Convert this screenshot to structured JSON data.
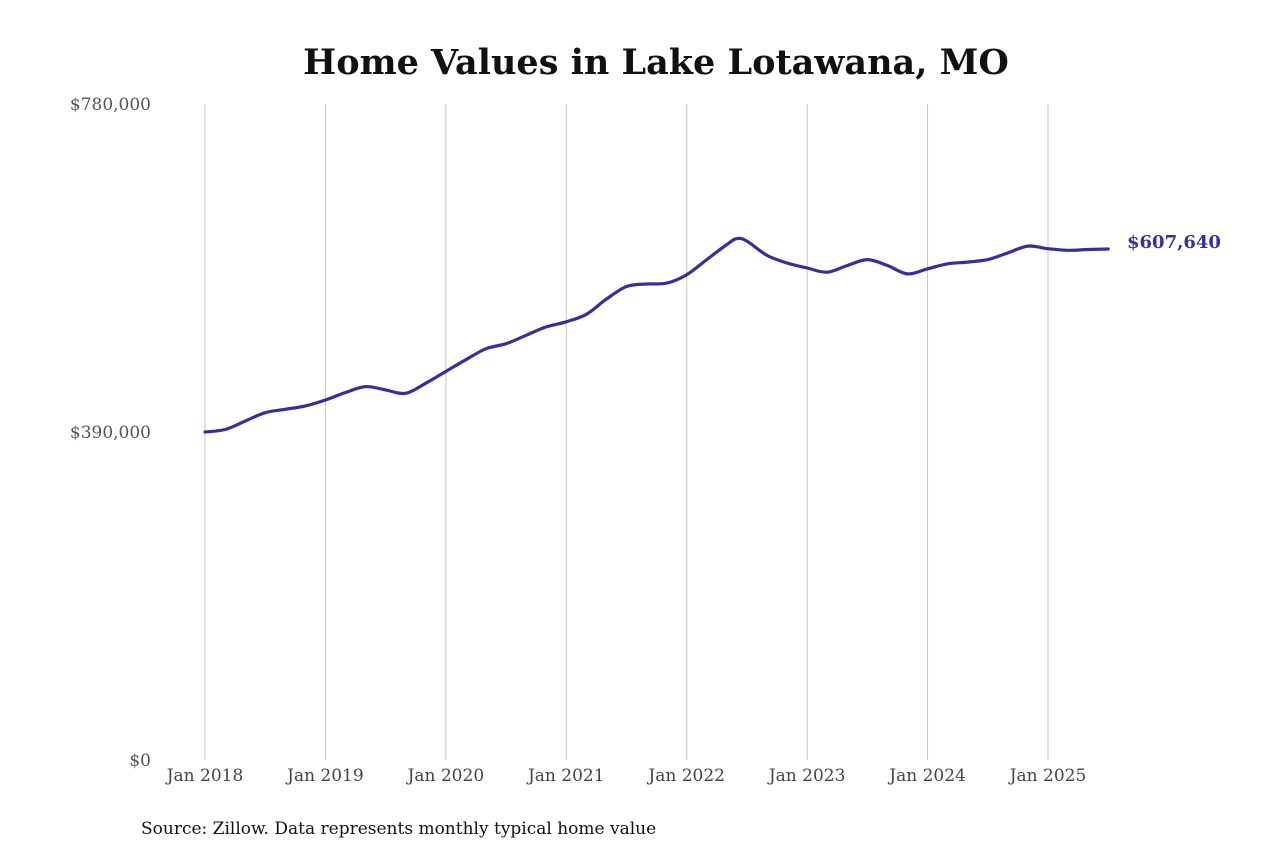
{
  "chart_data": {
    "type": "line",
    "title": "Home Values in Lake Lotawana, MO",
    "xlabel": "",
    "ylabel": "",
    "source": "Source: Zillow. Data represents monthly typical home value",
    "ylim": [
      0,
      780000
    ],
    "yticks": [
      0,
      390000,
      780000
    ],
    "ytick_labels": [
      "$0",
      "$390,000",
      "$780,000"
    ],
    "xticks": [
      "2018-01",
      "2019-01",
      "2020-01",
      "2021-01",
      "2022-01",
      "2023-01",
      "2024-01",
      "2025-01"
    ],
    "xtick_labels": [
      "Jan 2018",
      "Jan 2019",
      "Jan 2020",
      "Jan 2021",
      "Jan 2022",
      "Jan 2023",
      "Jan 2024",
      "Jan 2025"
    ],
    "grid": "vertical",
    "line_color": "#36309a",
    "end_label": "$607,640",
    "series": [
      {
        "x": [
          "2018-01",
          "2018-03",
          "2018-05",
          "2018-07",
          "2018-09",
          "2018-11",
          "2019-01",
          "2019-03",
          "2019-05",
          "2019-07",
          "2019-09",
          "2019-11",
          "2020-01",
          "2020-03",
          "2020-05",
          "2020-07",
          "2020-09",
          "2020-11",
          "2021-01",
          "2021-03",
          "2021-05",
          "2021-07",
          "2021-09",
          "2021-11",
          "2022-01",
          "2022-03",
          "2022-05",
          "2022-06",
          "2022-07",
          "2022-09",
          "2022-11",
          "2023-01",
          "2023-03",
          "2023-05",
          "2023-07",
          "2023-09",
          "2023-11",
          "2024-01",
          "2024-03",
          "2024-05",
          "2024-07",
          "2024-09",
          "2024-11",
          "2025-01",
          "2025-03",
          "2025-05",
          "2025-07"
        ],
        "values": [
          390000,
          393000,
          403000,
          413000,
          417000,
          421000,
          428000,
          437000,
          444000,
          440000,
          436000,
          448000,
          462000,
          476000,
          489000,
          495000,
          505000,
          515000,
          521000,
          530000,
          548000,
          563000,
          566000,
          567000,
          577000,
          595000,
          613000,
          620000,
          617000,
          600000,
          591000,
          585000,
          580000,
          588000,
          595000,
          588000,
          578000,
          584000,
          590000,
          592000,
          595000,
          603000,
          611000,
          608000,
          606000,
          607000,
          607640
        ]
      }
    ]
  }
}
